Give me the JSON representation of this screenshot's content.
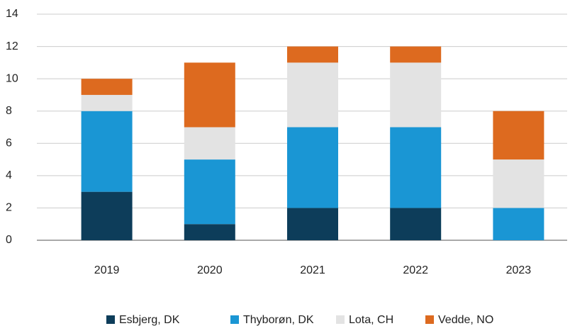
{
  "chart_data": {
    "type": "stacked_bar",
    "categories": [
      "2019",
      "2020",
      "2021",
      "2022",
      "2023"
    ],
    "series": [
      {
        "name": "Esbjerg, DK",
        "color": "#0d3d5a",
        "values": [
          3,
          1,
          2,
          2,
          0
        ]
      },
      {
        "name": "Thyborøn, DK",
        "color": "#1a96d4",
        "values": [
          5,
          4,
          5,
          5,
          2
        ]
      },
      {
        "name": "Lota, CH",
        "color": "#e3e3e3",
        "values": [
          1,
          2,
          4,
          4,
          3
        ]
      },
      {
        "name": "Vedde, NO",
        "color": "#dd6a1f",
        "values": [
          1,
          4,
          1,
          1,
          3
        ]
      }
    ],
    "ylim": [
      0,
      14
    ],
    "yticks": [
      0,
      2,
      4,
      6,
      8,
      10,
      12,
      14
    ],
    "grid": true,
    "legend": "bottom"
  }
}
